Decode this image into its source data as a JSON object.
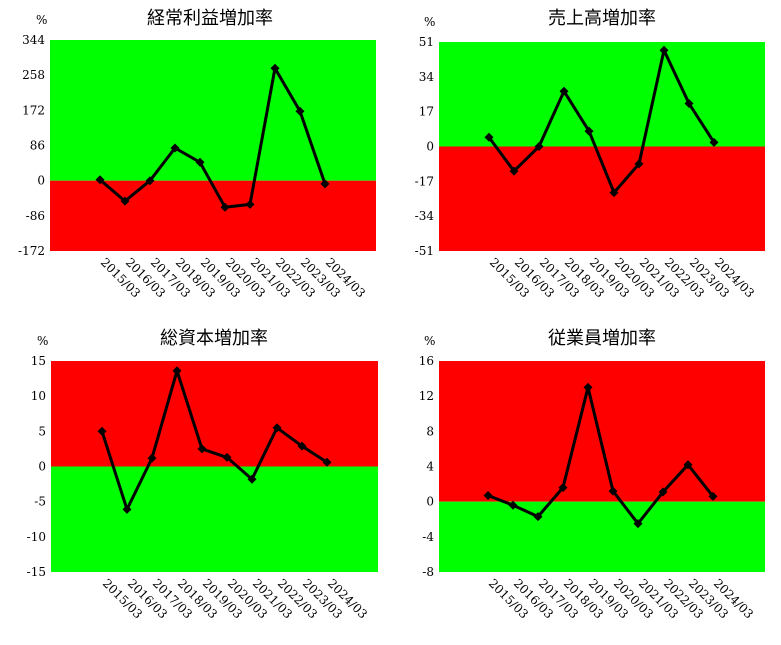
{
  "colors": {
    "positive_zone": "#00ff00",
    "negative_zone": "#ff0000",
    "line": "#000000"
  },
  "chart_data": [
    {
      "type": "line",
      "title": "経常利益増加率",
      "unit": "%",
      "categories": [
        "2015/03",
        "2016/03",
        "2017/03",
        "2018/03",
        "2019/03",
        "2020/03",
        "2021/03",
        "2022/03",
        "2023/03",
        "2024/03"
      ],
      "series": [
        {
          "values": [
            2,
            -50,
            0,
            80,
            45,
            -65,
            -58,
            275,
            170,
            -8
          ]
        }
      ],
      "ylim": [
        -172,
        344
      ],
      "yticks": [
        "344",
        "258",
        "172",
        "86",
        "0",
        "-86",
        "-172"
      ],
      "upper_zone": "positive_zone",
      "lower_zone": "negative_zone"
    },
    {
      "type": "line",
      "title": "売上高増加率",
      "unit": "%",
      "categories": [
        "2015/03",
        "2016/03",
        "2017/03",
        "2018/03",
        "2019/03",
        "2020/03",
        "2021/03",
        "2022/03",
        "2023/03",
        "2024/03"
      ],
      "series": [
        {
          "values": [
            4.5,
            -12,
            0,
            27,
            7.5,
            -22.5,
            -8.5,
            47,
            21,
            2
          ]
        }
      ],
      "ylim": [
        -51,
        51
      ],
      "yticks": [
        "51",
        "34",
        "17",
        "0",
        "-17",
        "-34",
        "-51"
      ],
      "upper_zone": "positive_zone",
      "lower_zone": "negative_zone"
    },
    {
      "type": "line",
      "title": "総資本増加率",
      "unit": "%",
      "categories": [
        "2015/03",
        "2016/03",
        "2017/03",
        "2018/03",
        "2019/03",
        "2020/03",
        "2021/03",
        "2022/03",
        "2023/03",
        "2024/03"
      ],
      "series": [
        {
          "values": [
            5,
            -6.1,
            1.2,
            13.6,
            2.5,
            1.3,
            -1.8,
            5.5,
            2.9,
            0.6
          ]
        }
      ],
      "ylim": [
        -15,
        15
      ],
      "yticks": [
        "15",
        "10",
        "5",
        "0",
        "-5",
        "-10",
        "-15"
      ],
      "upper_zone": "negative_zone",
      "lower_zone": "positive_zone"
    },
    {
      "type": "line",
      "title": "従業員増加率",
      "unit": "%",
      "categories": [
        "2015/03",
        "2016/03",
        "2017/03",
        "2018/03",
        "2019/03",
        "2020/03",
        "2021/03",
        "2022/03",
        "2023/03",
        "2024/03"
      ],
      "series": [
        {
          "values": [
            0.7,
            -0.4,
            -1.7,
            1.6,
            13,
            1.2,
            -2.5,
            1.1,
            4.2,
            0.6
          ]
        }
      ],
      "ylim": [
        -8,
        16
      ],
      "yticks": [
        "16",
        "12",
        "8",
        "4",
        "0",
        "-4",
        "-8"
      ],
      "upper_zone": "negative_zone",
      "lower_zone": "positive_zone"
    }
  ]
}
